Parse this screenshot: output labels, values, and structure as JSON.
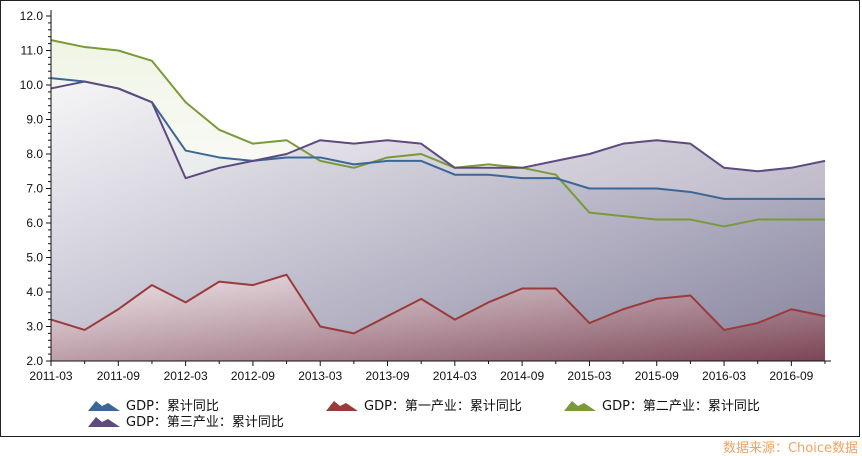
{
  "chart_data": {
    "type": "area",
    "x": [
      "2011-03",
      "2011-06",
      "2011-09",
      "2011-12",
      "2012-03",
      "2012-06",
      "2012-09",
      "2012-12",
      "2013-03",
      "2013-06",
      "2013-09",
      "2013-12",
      "2014-03",
      "2014-06",
      "2014-09",
      "2014-12",
      "2015-03",
      "2015-06",
      "2015-09",
      "2015-12",
      "2016-03",
      "2016-06",
      "2016-09",
      "2016-12"
    ],
    "xticks": [
      "2011-03",
      "2011-09",
      "2012-03",
      "2012-09",
      "2013-03",
      "2013-09",
      "2014-03",
      "2014-09",
      "2015-03",
      "2015-09",
      "2016-03",
      "2016-09"
    ],
    "yticks": [
      "2.0",
      "3.0",
      "4.0",
      "5.0",
      "6.0",
      "7.0",
      "8.0",
      "9.0",
      "10.0",
      "11.0",
      "12.0"
    ],
    "ylim": [
      2,
      12
    ],
    "grid": false,
    "legend_placement": "bottom",
    "series": [
      {
        "name": "GDP：累计同比",
        "color": "#3a6698",
        "values": [
          10.2,
          10.1,
          9.9,
          9.5,
          8.1,
          7.9,
          7.8,
          7.9,
          7.9,
          7.7,
          7.8,
          7.8,
          7.4,
          7.4,
          7.3,
          7.3,
          7.0,
          7.0,
          7.0,
          6.9,
          6.7,
          6.7,
          6.7,
          6.7
        ]
      },
      {
        "name": "GDP：第一产业：累计同比",
        "color": "#9b3a3a",
        "values": [
          3.2,
          2.9,
          3.5,
          4.2,
          3.7,
          4.3,
          4.2,
          4.5,
          3.0,
          2.8,
          3.3,
          3.8,
          3.2,
          3.7,
          4.1,
          4.1,
          3.1,
          3.5,
          3.8,
          3.9,
          2.9,
          3.1,
          3.5,
          3.3
        ]
      },
      {
        "name": "GDP：第二产业：累计同比",
        "color": "#7a9a3a",
        "values": [
          11.3,
          11.1,
          11.0,
          10.7,
          9.5,
          8.7,
          8.3,
          8.4,
          7.8,
          7.6,
          7.9,
          8.0,
          7.6,
          7.7,
          7.6,
          7.4,
          6.3,
          6.2,
          6.1,
          6.1,
          5.9,
          6.1,
          6.1,
          6.1
        ]
      },
      {
        "name": "GDP：第三产业：累计同比",
        "color": "#5e4a80",
        "values": [
          9.9,
          10.1,
          9.9,
          9.5,
          7.3,
          7.6,
          7.8,
          8.0,
          8.4,
          8.3,
          8.4,
          8.3,
          7.6,
          7.6,
          7.6,
          7.8,
          8.0,
          8.3,
          8.4,
          8.3,
          7.6,
          7.5,
          7.6,
          7.8
        ]
      }
    ]
  },
  "source": "数据来源：Choice数据"
}
